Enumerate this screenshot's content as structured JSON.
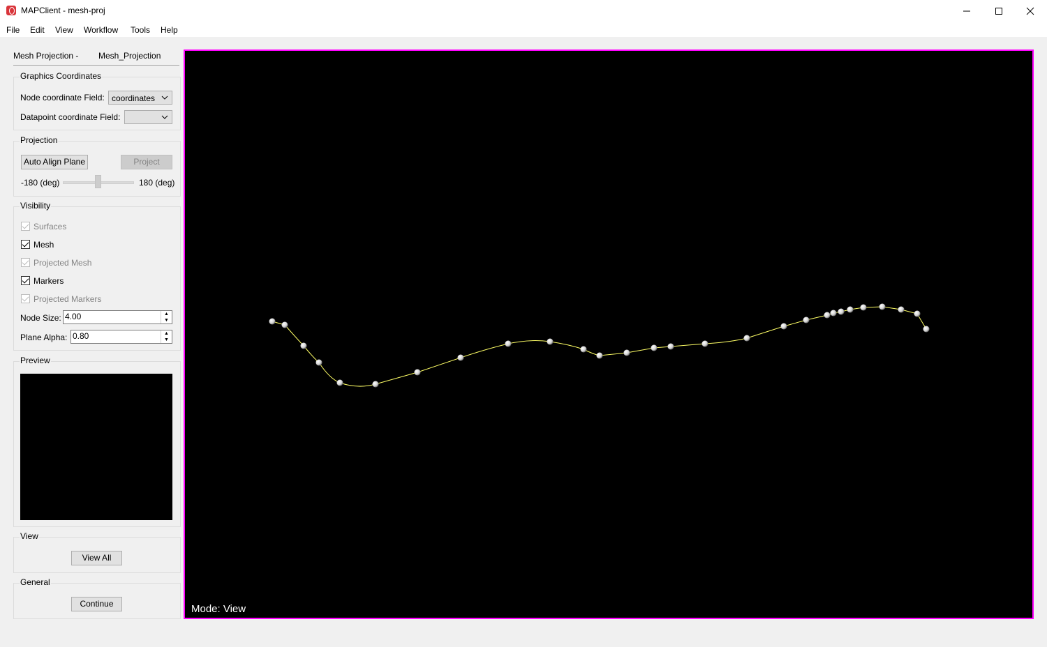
{
  "window": {
    "title": "MAPClient - mesh-proj",
    "minimize_icon": "minimize-icon",
    "maximize_icon": "maximize-icon",
    "close_icon": "close-icon"
  },
  "menu": [
    "File",
    "Edit",
    "View",
    "Workflow",
    "Tools",
    "Help"
  ],
  "tab": {
    "step": "Mesh Projection -",
    "name": "Mesh_Projection"
  },
  "graphics_coordinates": {
    "title": "Graphics Coordinates",
    "node_label": "Node coordinate Field:",
    "node_value": "coordinates",
    "datapoint_label": "Datapoint coordinate Field:",
    "datapoint_value": ""
  },
  "projection": {
    "title": "Projection",
    "auto_align_label": "Auto Align Plane",
    "project_label": "Project",
    "slider_min": "-180 (deg)",
    "slider_max": "180 (deg)",
    "slider_value_fraction": 0.5
  },
  "visibility": {
    "title": "Visibility",
    "surfaces": "Surfaces",
    "mesh": "Mesh",
    "projected_mesh": "Projected Mesh",
    "markers": "Markers",
    "projected_markers": "Projected Markers",
    "node_size_label": "Node Size:",
    "node_size_value": "4.00",
    "plane_alpha_label": "Plane Alpha:",
    "plane_alpha_value": "0.80"
  },
  "preview": {
    "title": "Preview"
  },
  "view": {
    "title": "View",
    "view_all_label": "View All"
  },
  "general": {
    "title": "General",
    "continue_label": "Continue"
  },
  "scene": {
    "mode_text": "Mode: View",
    "curve_color": "#ffff66",
    "node_color": "#e8e8e8",
    "border_color": "#ff00ff"
  }
}
